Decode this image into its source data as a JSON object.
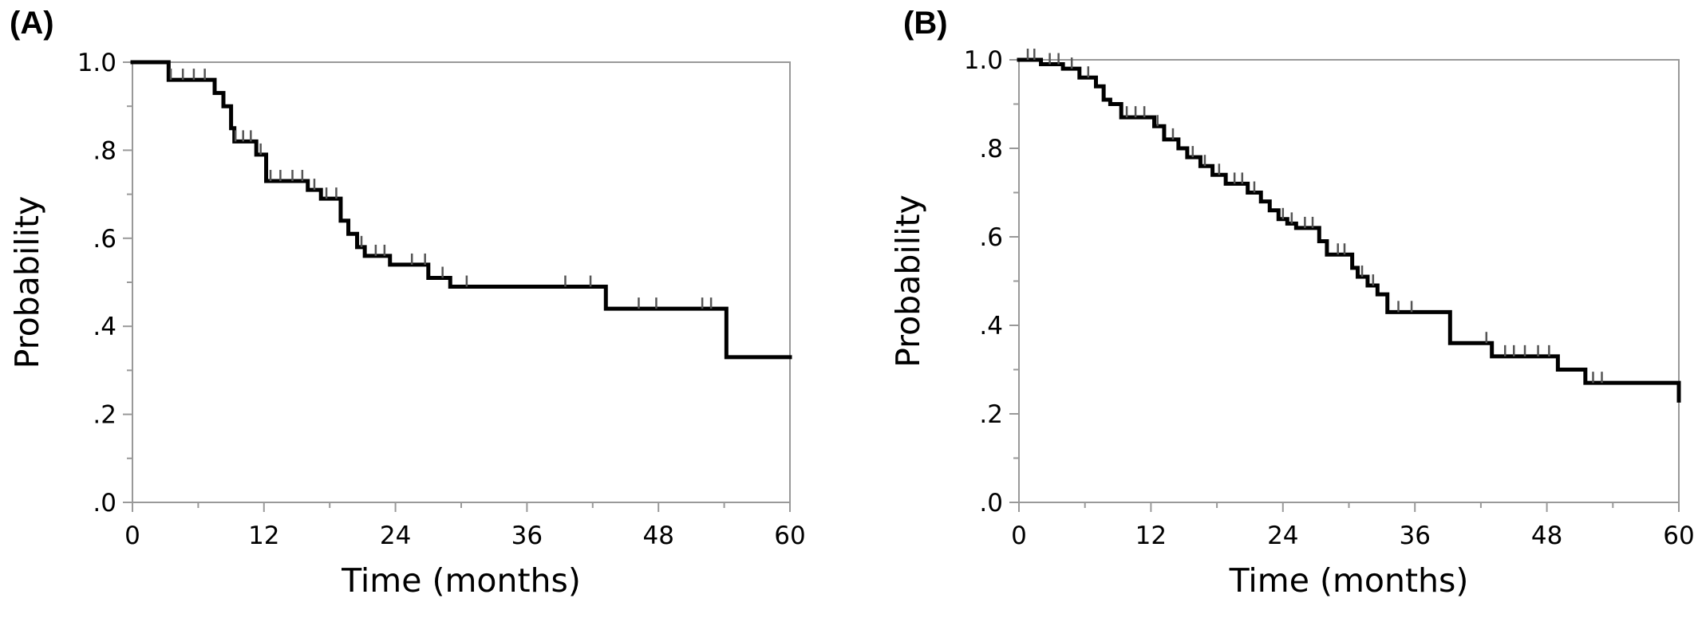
{
  "chart_data": [
    {
      "type": "line",
      "step": true,
      "panel_label": "(A)",
      "xlabel": "Time (months)",
      "ylabel": "Probability",
      "xlim": [
        0,
        60
      ],
      "ylim": [
        0,
        1
      ],
      "xticks": [
        0,
        12,
        24,
        36,
        48,
        60
      ],
      "xtick_labels": [
        "0",
        "12",
        "24",
        "36",
        "48",
        "60"
      ],
      "yticks": [
        0,
        0.2,
        0.4,
        0.6,
        0.8,
        1.0
      ],
      "ytick_labels": [
        ".0",
        ".2",
        ".4",
        ".6",
        ".8",
        "1.0"
      ],
      "grid": false,
      "series": [
        {
          "color": "#000000",
          "x": [
            0,
            3.3,
            7.5,
            8.3,
            9.0,
            9.3,
            11.3,
            12.2,
            16.0,
            17.2,
            19.0,
            19.7,
            20.5,
            21.2,
            23.5,
            27.0,
            29.0,
            43.2,
            54.2,
            60
          ],
          "y": [
            1.0,
            0.96,
            0.93,
            0.9,
            0.85,
            0.82,
            0.79,
            0.73,
            0.71,
            0.69,
            0.64,
            0.61,
            0.58,
            0.56,
            0.54,
            0.51,
            0.49,
            0.44,
            0.33,
            0.33
          ]
        }
      ],
      "censor_times": [
        3.5,
        4.6,
        5.6,
        6.6,
        9.4,
        10.1,
        10.8,
        11.7,
        12.6,
        13.5,
        14.6,
        15.5,
        16.6,
        17.7,
        18.6,
        20.9,
        22.2,
        23.0,
        25.5,
        26.7,
        28.3,
        30.5,
        39.5,
        41.8,
        46.2,
        47.8,
        52.0,
        52.8
      ]
    },
    {
      "type": "line",
      "step": true,
      "panel_label": "(B)",
      "xlabel": "Time (months)",
      "ylabel": "Probability",
      "xlim": [
        0,
        60
      ],
      "ylim": [
        0,
        1
      ],
      "xticks": [
        0,
        12,
        24,
        36,
        48,
        60
      ],
      "xtick_labels": [
        "0",
        "12",
        "24",
        "36",
        "48",
        "60"
      ],
      "yticks": [
        0,
        0.2,
        0.4,
        0.6,
        0.8,
        1.0
      ],
      "ytick_labels": [
        ".0",
        ".2",
        ".4",
        ".6",
        ".8",
        "1.0"
      ],
      "grid": false,
      "series": [
        {
          "color": "#000000",
          "x": [
            0,
            2.0,
            4.0,
            5.5,
            7.0,
            7.7,
            8.3,
            9.3,
            12.3,
            13.2,
            14.5,
            15.3,
            16.5,
            17.6,
            18.8,
            20.8,
            22.0,
            22.8,
            23.6,
            24.4,
            25.2,
            27.3,
            28.0,
            30.3,
            30.8,
            31.7,
            32.6,
            33.5,
            39.2,
            43.0,
            49.0,
            51.5,
            60
          ],
          "y": [
            1.0,
            0.99,
            0.98,
            0.96,
            0.94,
            0.91,
            0.9,
            0.87,
            0.85,
            0.82,
            0.8,
            0.78,
            0.76,
            0.74,
            0.72,
            0.7,
            0.68,
            0.66,
            0.64,
            0.63,
            0.62,
            0.59,
            0.56,
            0.53,
            0.51,
            0.49,
            0.47,
            0.43,
            0.36,
            0.33,
            0.3,
            0.27,
            0.23
          ]
        }
      ],
      "censor_times": [
        0.8,
        1.4,
        2.8,
        3.6,
        4.8,
        6.3,
        9.8,
        10.6,
        11.4,
        12.6,
        14.0,
        15.8,
        16.9,
        18.2,
        19.6,
        20.3,
        21.4,
        24.0,
        24.8,
        26.0,
        26.7,
        29.0,
        29.6,
        31.2,
        32.2,
        34.5,
        35.7,
        42.5,
        44.2,
        45.0,
        46.0,
        47.2,
        48.2,
        52.2,
        53.0
      ]
    }
  ]
}
